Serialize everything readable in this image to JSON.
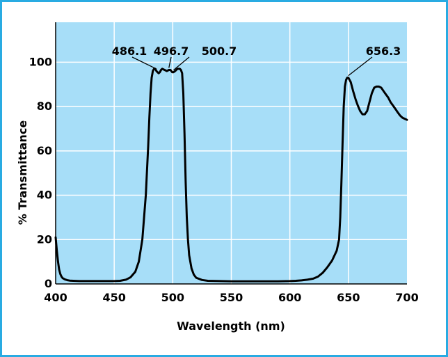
{
  "colors": {
    "frame_border": "#29abe2",
    "plot_background": "#a7def8",
    "grid": "#ffffff",
    "curve": "#000000"
  },
  "chart_data": {
    "type": "line",
    "title": "",
    "xlabel": "Wavelength (nm)",
    "ylabel": "% Transmittance",
    "xlim": [
      400,
      700
    ],
    "ylim": [
      0,
      118
    ],
    "grid": true,
    "x_ticks": [
      400,
      450,
      500,
      550,
      600,
      650,
      700
    ],
    "y_ticks": [
      0,
      20,
      40,
      60,
      80,
      100
    ],
    "series": [
      {
        "x": [
          400,
          401,
          402,
          403,
          404,
          405,
          406,
          408,
          410,
          412,
          415,
          420,
          430,
          440,
          450,
          455,
          460,
          464,
          468,
          471,
          474,
          477,
          479,
          480,
          481,
          482,
          483,
          484,
          485,
          486.1,
          487,
          488,
          489,
          490,
          491,
          493,
          495,
          496.7,
          498,
          499.5,
          500.7,
          502,
          504,
          506,
          507,
          508,
          509,
          510,
          511,
          512,
          513,
          514,
          516,
          518,
          520,
          525,
          530,
          540,
          550,
          560,
          570,
          580,
          590,
          600,
          605,
          610,
          615,
          620,
          624,
          628,
          632,
          636,
          640,
          642,
          643,
          644,
          645,
          646,
          647,
          648,
          649,
          650,
          652,
          654,
          656.3,
          658,
          660,
          662,
          664,
          666,
          668,
          670,
          672,
          674,
          676,
          678,
          680,
          682,
          684,
          686,
          688,
          690,
          692,
          694,
          696,
          698,
          700
        ],
        "y": [
          21,
          15,
          10,
          6.5,
          4.5,
          3.3,
          2.6,
          2.0,
          1.7,
          1.5,
          1.4,
          1.3,
          1.3,
          1.3,
          1.3,
          1.4,
          1.9,
          3.0,
          5.5,
          10,
          20,
          40,
          62,
          75,
          86,
          93,
          96,
          97,
          97,
          96,
          95.5,
          95,
          95.5,
          96.5,
          97,
          96.5,
          96,
          96.5,
          96.5,
          95.5,
          95.5,
          96,
          97,
          97,
          96.5,
          95,
          86,
          68,
          46,
          30,
          20,
          13,
          7,
          4.2,
          2.8,
          1.8,
          1.4,
          1.3,
          1.2,
          1.2,
          1.2,
          1.2,
          1.2,
          1.3,
          1.4,
          1.6,
          1.9,
          2.4,
          3.3,
          5,
          7.5,
          10.5,
          15,
          20,
          30,
          45,
          63,
          80,
          89,
          92,
          93,
          93,
          91,
          87,
          83,
          80.5,
          78,
          76.5,
          76.5,
          78,
          82,
          86,
          88.5,
          89,
          89,
          88.5,
          87,
          85.5,
          84,
          82,
          80.5,
          79,
          77.5,
          76,
          75,
          74.5,
          74
        ]
      }
    ],
    "annotations": [
      {
        "text": "486.1",
        "x": 486.1,
        "y": 96
      },
      {
        "text": "496.7",
        "x": 496.7,
        "y": 96.5
      },
      {
        "text": "500.7",
        "x": 500.7,
        "y": 95.5
      },
      {
        "text": "656.3",
        "x": 650,
        "y": 93
      }
    ]
  }
}
